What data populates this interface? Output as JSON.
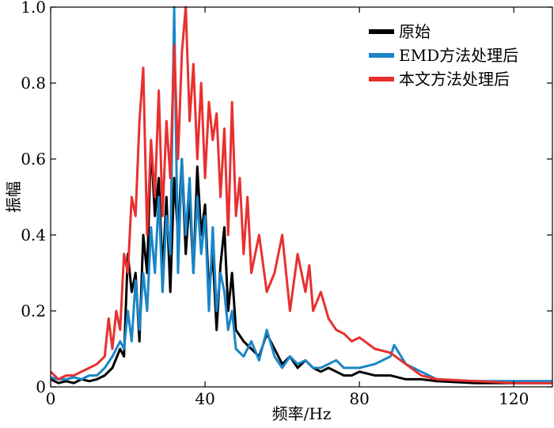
{
  "chart_data": {
    "type": "line",
    "title": "",
    "xlabel": "频率/Hz",
    "ylabel": "振幅",
    "xlim": [
      0,
      130
    ],
    "ylim": [
      0,
      1.0
    ],
    "xticks": [
      0,
      40,
      80,
      120
    ],
    "xtick_labels": [
      "0",
      "40",
      "80",
      "120"
    ],
    "yticks": [
      0,
      0.2,
      0.4,
      0.6,
      0.8,
      1.0
    ],
    "ytick_labels": [
      "0",
      "0.2",
      "0.4",
      "0.6",
      "0.8",
      "1.0"
    ],
    "legend_position": "top-right",
    "grid": false,
    "series": [
      {
        "name": "原始",
        "color": "#000000",
        "x": [
          0,
          2,
          4,
          6,
          8,
          10,
          12,
          14,
          16,
          18,
          19,
          20,
          21,
          22,
          23,
          24,
          25,
          26,
          27,
          28,
          29,
          30,
          31,
          32,
          33,
          34,
          35,
          36,
          37,
          38,
          39,
          40,
          41,
          42,
          43,
          44,
          45,
          46,
          47,
          48,
          50,
          52,
          54,
          56,
          58,
          60,
          62,
          64,
          66,
          68,
          70,
          72,
          74,
          76,
          78,
          80,
          84,
          88,
          92,
          96,
          100,
          110,
          120,
          130
        ],
        "values": [
          0.02,
          0.01,
          0.015,
          0.01,
          0.02,
          0.015,
          0.02,
          0.03,
          0.05,
          0.1,
          0.08,
          0.35,
          0.25,
          0.3,
          0.12,
          0.4,
          0.3,
          0.64,
          0.45,
          0.55,
          0.3,
          0.5,
          0.25,
          0.55,
          0.4,
          0.6,
          0.35,
          0.5,
          0.3,
          0.58,
          0.4,
          0.48,
          0.25,
          0.35,
          0.15,
          0.32,
          0.42,
          0.2,
          0.3,
          0.15,
          0.12,
          0.1,
          0.08,
          0.14,
          0.1,
          0.06,
          0.08,
          0.05,
          0.07,
          0.05,
          0.04,
          0.05,
          0.04,
          0.03,
          0.03,
          0.04,
          0.03,
          0.03,
          0.02,
          0.02,
          0.015,
          0.01,
          0.01,
          0.01
        ]
      },
      {
        "name": "EMD方法处理后",
        "color": "#1a86c8",
        "x": [
          0,
          2,
          4,
          6,
          8,
          10,
          12,
          14,
          16,
          18,
          19,
          20,
          21,
          22,
          23,
          24,
          25,
          26,
          27,
          28,
          29,
          30,
          31,
          32,
          33,
          34,
          35,
          36,
          37,
          38,
          39,
          40,
          41,
          42,
          43,
          44,
          45,
          46,
          47,
          48,
          50,
          52,
          54,
          56,
          58,
          60,
          62,
          64,
          66,
          68,
          70,
          72,
          74,
          76,
          78,
          80,
          84,
          88,
          89,
          92,
          96,
          100,
          110,
          120,
          130
        ],
        "values": [
          0.025,
          0.02,
          0.02,
          0.025,
          0.02,
          0.03,
          0.03,
          0.05,
          0.08,
          0.12,
          0.1,
          0.2,
          0.12,
          0.28,
          0.15,
          0.3,
          0.2,
          0.42,
          0.3,
          0.5,
          0.25,
          0.45,
          0.35,
          1.0,
          0.3,
          0.6,
          0.4,
          0.55,
          0.3,
          0.5,
          0.35,
          0.45,
          0.2,
          0.42,
          0.2,
          0.3,
          0.25,
          0.15,
          0.2,
          0.1,
          0.08,
          0.12,
          0.07,
          0.15,
          0.08,
          0.05,
          0.08,
          0.06,
          0.07,
          0.05,
          0.05,
          0.06,
          0.07,
          0.05,
          0.05,
          0.05,
          0.06,
          0.08,
          0.11,
          0.06,
          0.04,
          0.02,
          0.015,
          0.015,
          0.015
        ]
      },
      {
        "name": "本文方法处理后",
        "color": "#e83030",
        "x": [
          0,
          2,
          4,
          6,
          8,
          10,
          12,
          14,
          15,
          16,
          17,
          18,
          19,
          20,
          21,
          22,
          23,
          24,
          25,
          26,
          27,
          28,
          29,
          30,
          31,
          32,
          33,
          34,
          35,
          36,
          37,
          38,
          39,
          40,
          41,
          42,
          43,
          44,
          45,
          46,
          47,
          48,
          49,
          50,
          51,
          52,
          54,
          56,
          58,
          60,
          62,
          64,
          66,
          67,
          68,
          70,
          72,
          74,
          76,
          78,
          80,
          84,
          88,
          92,
          96,
          100,
          110,
          120,
          130
        ],
        "values": [
          0.04,
          0.02,
          0.03,
          0.03,
          0.04,
          0.05,
          0.06,
          0.08,
          0.18,
          0.1,
          0.2,
          0.15,
          0.35,
          0.3,
          0.5,
          0.45,
          0.7,
          0.84,
          0.4,
          0.65,
          0.5,
          0.78,
          0.45,
          0.7,
          0.55,
          0.9,
          0.6,
          0.88,
          1.0,
          0.7,
          0.85,
          0.6,
          0.8,
          0.55,
          0.75,
          0.65,
          0.72,
          0.5,
          0.68,
          0.4,
          0.75,
          0.45,
          0.55,
          0.35,
          0.5,
          0.3,
          0.4,
          0.25,
          0.3,
          0.4,
          0.2,
          0.35,
          0.25,
          0.32,
          0.2,
          0.25,
          0.18,
          0.15,
          0.14,
          0.12,
          0.13,
          0.1,
          0.09,
          0.06,
          0.03,
          0.02,
          0.015,
          0.01,
          0.01
        ]
      }
    ]
  }
}
